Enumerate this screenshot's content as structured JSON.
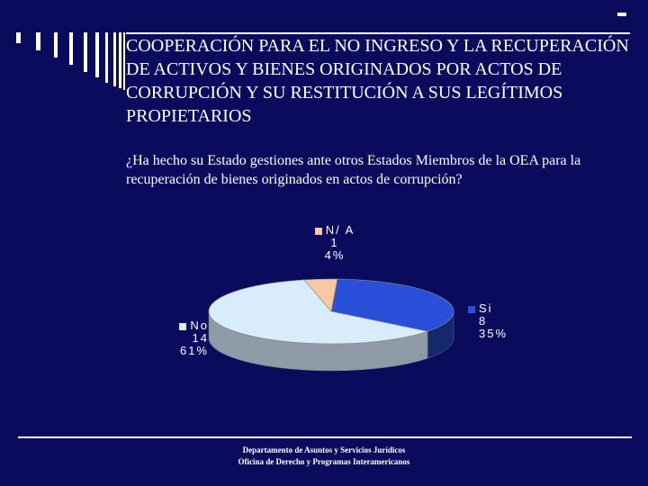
{
  "slide": {
    "title": "COOPERACIÓN PARA EL NO INGRESO Y LA RECUPERACIÓN DE ACTIVOS Y BIENES ORIGINADOS POR ACTOS DE CORRUPCIÓN Y SU RESTITUCIÓN A SUS LEGÍTIMOS PROPIETARIOS",
    "question": "¿Ha hecho su Estado gestiones ante otros Estados Miembros de la OEA para la recuperación de bienes originados en actos de corrupción?",
    "footer_line1": "Departamento de Asuntos y Servicios Jurídicos",
    "footer_line2": "Oficina de Derecho y Programas Interamericanos",
    "background_color": "#0b0b5e"
  },
  "chart_data": {
    "type": "pie",
    "title": "",
    "slices": [
      {
        "label": "Si",
        "value": 8,
        "percent": "35%",
        "color": "#2a4fd8",
        "side_color": "#14286e"
      },
      {
        "label": "No",
        "value": 14,
        "percent": "61%",
        "color": "#d8ecfb",
        "side_color": "#8e9aa6"
      },
      {
        "label": "N/ A",
        "value": 1,
        "percent": "4%",
        "color": "#f7c9a3",
        "side_color": "#a88060"
      }
    ]
  }
}
